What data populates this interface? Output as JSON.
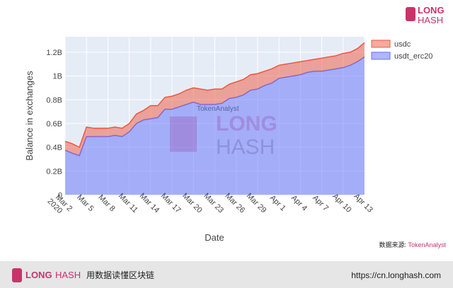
{
  "chart_data": {
    "type": "area",
    "stacked": true,
    "x_label": "Date",
    "y_label": "Balance in exchanges",
    "x": [
      "2020-03-02",
      "2020-03-03",
      "2020-03-04",
      "2020-03-05",
      "2020-03-06",
      "2020-03-07",
      "2020-03-08",
      "2020-03-09",
      "2020-03-10",
      "2020-03-11",
      "2020-03-12",
      "2020-03-13",
      "2020-03-14",
      "2020-03-15",
      "2020-03-16",
      "2020-03-17",
      "2020-03-18",
      "2020-03-19",
      "2020-03-20",
      "2020-03-21",
      "2020-03-22",
      "2020-03-23",
      "2020-03-24",
      "2020-03-25",
      "2020-03-26",
      "2020-03-27",
      "2020-03-28",
      "2020-03-29",
      "2020-03-30",
      "2020-03-31",
      "2020-04-01",
      "2020-04-02",
      "2020-04-03",
      "2020-04-04",
      "2020-04-05",
      "2020-04-06",
      "2020-04-07",
      "2020-04-08",
      "2020-04-09",
      "2020-04-10",
      "2020-04-11",
      "2020-04-12",
      "2020-04-13"
    ],
    "series": [
      {
        "name": "usdt_erc20",
        "color": "#636efa",
        "values": [
          375000000,
          350000000,
          330000000,
          490000000,
          490000000,
          490000000,
          490000000,
          500000000,
          490000000,
          530000000,
          600000000,
          630000000,
          640000000,
          650000000,
          720000000,
          720000000,
          740000000,
          760000000,
          780000000,
          760000000,
          760000000,
          760000000,
          770000000,
          810000000,
          820000000,
          840000000,
          880000000,
          890000000,
          920000000,
          940000000,
          980000000,
          990000000,
          1000000000,
          1010000000,
          1030000000,
          1040000000,
          1040000000,
          1050000000,
          1060000000,
          1070000000,
          1090000000,
          1120000000,
          1160000000
        ]
      },
      {
        "name": "usdc",
        "color": "#ef553b",
        "values": [
          75000000,
          80000000,
          70000000,
          80000000,
          70000000,
          70000000,
          70000000,
          70000000,
          70000000,
          70000000,
          80000000,
          80000000,
          110000000,
          100000000,
          100000000,
          110000000,
          110000000,
          120000000,
          120000000,
          130000000,
          120000000,
          130000000,
          120000000,
          120000000,
          130000000,
          130000000,
          130000000,
          130000000,
          120000000,
          120000000,
          110000000,
          110000000,
          110000000,
          110000000,
          100000000,
          100000000,
          110000000,
          110000000,
          110000000,
          120000000,
          110000000,
          110000000,
          120000000
        ]
      }
    ],
    "xlim": [
      "2020-03-02",
      "2020-04-13"
    ],
    "xticks": [
      {
        "value": "2020-03-02",
        "label": "Mar 2\n2020"
      },
      {
        "value": "2020-03-05",
        "label": "Mar 5"
      },
      {
        "value": "2020-03-08",
        "label": "Mar 8"
      },
      {
        "value": "2020-03-11",
        "label": "Mar 11"
      },
      {
        "value": "2020-03-14",
        "label": "Mar 14"
      },
      {
        "value": "2020-03-17",
        "label": "Mar 17"
      },
      {
        "value": "2020-03-20",
        "label": "Mar 20"
      },
      {
        "value": "2020-03-23",
        "label": "Mar 23"
      },
      {
        "value": "2020-03-26",
        "label": "Mar 26"
      },
      {
        "value": "2020-03-29",
        "label": "Mar 29"
      },
      {
        "value": "2020-04-01",
        "label": "Apr 1"
      },
      {
        "value": "2020-04-04",
        "label": "Apr 4"
      },
      {
        "value": "2020-04-07",
        "label": "Apr 7"
      },
      {
        "value": "2020-04-10",
        "label": "Apr 10"
      },
      {
        "value": "2020-04-13",
        "label": "Apr 13"
      }
    ],
    "ylim": [
      0,
      1330000000
    ],
    "yticks": [
      0,
      {
        "value": 200000000,
        "label": "0.2B"
      },
      {
        "value": 400000000,
        "label": "0.4B"
      },
      {
        "value": 600000000,
        "label": "0.6B"
      },
      {
        "value": 800000000,
        "label": "0.8B"
      },
      {
        "value": 1000000000,
        "label": "1B"
      },
      {
        "value": 1200000000,
        "label": "1.2B"
      }
    ],
    "grid": true,
    "legend": "top-right-outside"
  },
  "watermark": {
    "source": "TokenAnalyst",
    "brand_a": "LONG",
    "brand_b": "HASH"
  },
  "logo": {
    "a": "LONG",
    "b": "HASH"
  },
  "source": {
    "prefix": "数据来源: ",
    "name": "TokenAnalyst"
  },
  "footer": {
    "brand_a": "LONG",
    "brand_b": "HASH",
    "slogan": "用数据读懂区块链",
    "url": "https://cn.longhash.com"
  }
}
